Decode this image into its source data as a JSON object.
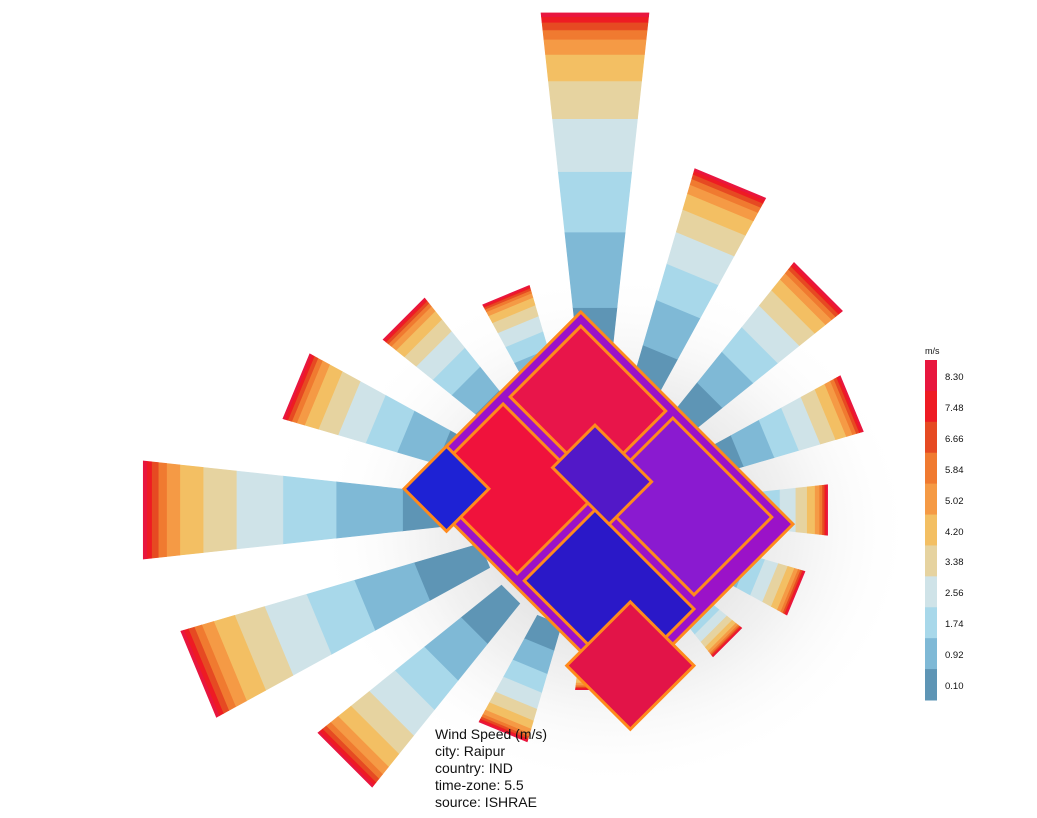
{
  "legend": {
    "unit": "m/s",
    "ticks": [
      "8.30",
      "7.48",
      "6.66",
      "5.84",
      "5.02",
      "4.20",
      "3.38",
      "2.56",
      "1.74",
      "0.92",
      "0.10"
    ],
    "colors": [
      "#e8163e",
      "#ee1b23",
      "#e64a22",
      "#f07a30",
      "#f59a45",
      "#f3bf63",
      "#e6d3a0",
      "#cfe3e8",
      "#a8d8ea",
      "#7fb9d6",
      "#5e95b5"
    ]
  },
  "info": {
    "title": "Wind Speed (m/s)",
    "city": "city: Raipur",
    "country": "country: IND",
    "timezone": "time-zone: 5.5",
    "source": "source: ISHRAE"
  },
  "chart_data": {
    "type": "wind-rose",
    "variable": "Wind Speed",
    "unit": "m/s",
    "directions_deg": [
      0,
      22.5,
      45,
      67.5,
      90,
      112.5,
      135,
      157.5,
      180,
      202.5,
      225,
      247.5,
      270,
      292.5,
      315,
      337.5
    ],
    "relative_frequency": [
      1.0,
      0.62,
      0.52,
      0.42,
      0.3,
      0.26,
      0.18,
      0.16,
      0.16,
      0.32,
      0.62,
      0.82,
      0.88,
      0.54,
      0.4,
      0.3
    ],
    "speed_bins": [
      "0.10",
      "0.92",
      "1.74",
      "2.56",
      "3.38",
      "4.20",
      "5.02",
      "5.84",
      "6.66",
      "7.48",
      "8.30"
    ],
    "legend_min": 0.1,
    "legend_max": 8.3
  }
}
